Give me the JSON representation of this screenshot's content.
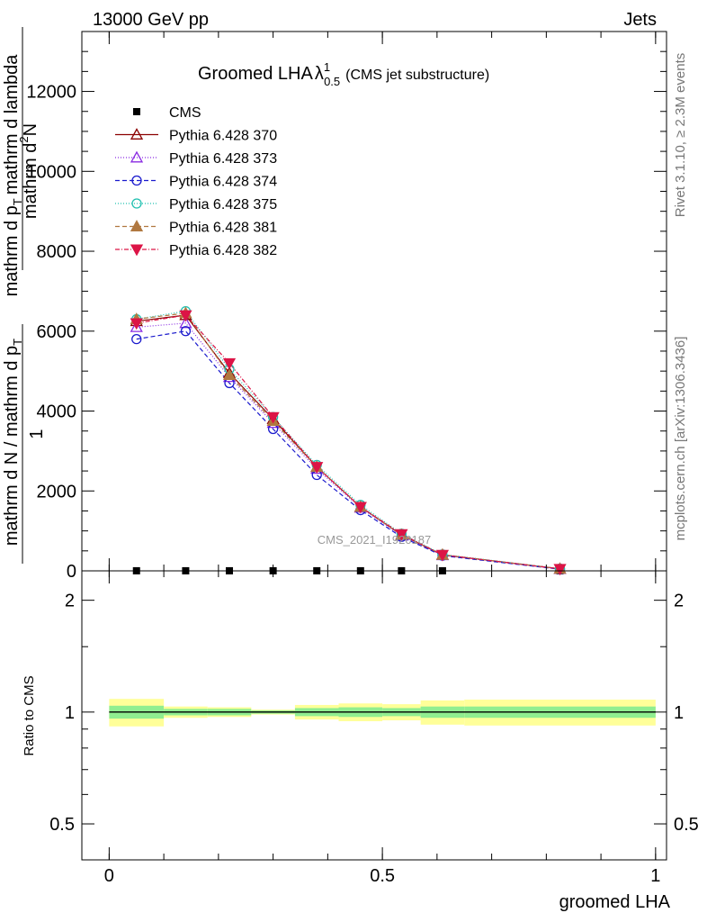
{
  "header": {
    "left": "13000 GeV pp",
    "right": "Jets"
  },
  "title": {
    "main": "Groomed LHA",
    "lambda": "λ",
    "sup": "1",
    "sub": "0.5",
    "note": "(CMS jet substructure)"
  },
  "side_labels": {
    "rivet": "Rivet 3.1.10, ≥ 2.3M events",
    "mcplots": "mcplots.cern.ch [arXiv:1306.3436]"
  },
  "watermark": "CMS_2021_I1920187",
  "main_ylabel": {
    "numerator_one": "1",
    "denominator_one": "mathrm d N / mathrm d p",
    "denominator_sub": "T",
    "numerator_two": "mathrm d",
    "numerator_two_sup": "2",
    "numerator_two_rest": "N",
    "denominator_two": "mathrm d p",
    "denominator_two_sub": "T",
    "denominator_two_rest": "mathrm d lambda"
  },
  "ratio_ylabel": "Ratio to CMS",
  "xlabel": "groomed LHA",
  "chart_data": [
    {
      "type": "line",
      "panel": "main",
      "xlim": [
        -0.05,
        1.02
      ],
      "ylim": [
        0,
        13500
      ],
      "yticks": [
        0,
        2000,
        4000,
        6000,
        8000,
        10000,
        12000
      ],
      "ytick_labels": [
        "0",
        "2000",
        "4000",
        "6000",
        "8000",
        "10000",
        "12000"
      ],
      "bin_edges": [
        0.0,
        0.1,
        0.18,
        0.26,
        0.34,
        0.42,
        0.5,
        0.57,
        0.65,
        1.0
      ],
      "x": [
        0.05,
        0.14,
        0.22,
        0.3,
        0.38,
        0.46,
        0.535,
        0.61,
        0.825
      ],
      "legend_position": "top-left",
      "series": [
        {
          "name": "CMS",
          "marker": "square-filled",
          "color": "#000000",
          "dash": "",
          "values": [
            2,
            2,
            2,
            2,
            2,
            2,
            2,
            2,
            2
          ]
        },
        {
          "name": "Pythia 6.428 370",
          "marker": "triangle-up-open",
          "color": "#8b0000",
          "dash": "",
          "values": [
            6250,
            6400,
            4950,
            3800,
            2600,
            1600,
            900,
            400,
            50
          ]
        },
        {
          "name": "Pythia 6.428 373",
          "marker": "triangle-up-open",
          "color": "#8a2be2",
          "dash": "1,2",
          "values": [
            6100,
            6200,
            4850,
            3700,
            2550,
            1580,
            880,
            390,
            45
          ]
        },
        {
          "name": "Pythia 6.428 374",
          "marker": "circle-open",
          "color": "#1a1acd",
          "dash": "5,3",
          "values": [
            5800,
            6000,
            4700,
            3550,
            2400,
            1520,
            850,
            380,
            40
          ]
        },
        {
          "name": "Pythia 6.428 375",
          "marker": "circle-open",
          "color": "#20c0b0",
          "dash": "1,2",
          "values": [
            6300,
            6500,
            5050,
            3850,
            2650,
            1650,
            930,
            410,
            55
          ]
        },
        {
          "name": "Pythia 6.428 381",
          "marker": "triangle-up-filled",
          "color": "#b07840",
          "dash": "5,3",
          "values": [
            6300,
            6450,
            4900,
            3750,
            2600,
            1600,
            900,
            400,
            50
          ]
        },
        {
          "name": "Pythia 6.428 382",
          "marker": "triangle-down-filled",
          "color": "#dc1446",
          "dash": "5,2,1,2",
          "values": [
            6200,
            6400,
            5200,
            3850,
            2600,
            1600,
            920,
            400,
            50
          ]
        }
      ]
    },
    {
      "type": "line",
      "panel": "ratio",
      "ylabel": "Ratio to CMS",
      "ylim": [
        0.4,
        2.4
      ],
      "ylog": true,
      "yticks": [
        0.5,
        1,
        2
      ],
      "ytick_labels": [
        "0.5",
        "1",
        "2"
      ],
      "xticks": [
        0,
        0.5,
        1
      ],
      "xtick_labels": [
        "0",
        "0.5",
        "1"
      ],
      "bin_edges": [
        0.0,
        0.1,
        0.18,
        0.26,
        0.34,
        0.42,
        0.5,
        0.57,
        0.65,
        1.0
      ],
      "band_outer_color": "#ffff99",
      "band_inner_color": "#90ee90",
      "ratio_value": 1.0,
      "band_outer_halfwidth": [
        0.085,
        0.035,
        0.03,
        0.015,
        0.045,
        0.055,
        0.05,
        0.075,
        0.08
      ],
      "band_inner_halfwidth": [
        0.04,
        0.02,
        0.02,
        0.01,
        0.025,
        0.03,
        0.025,
        0.035,
        0.035
      ]
    }
  ]
}
